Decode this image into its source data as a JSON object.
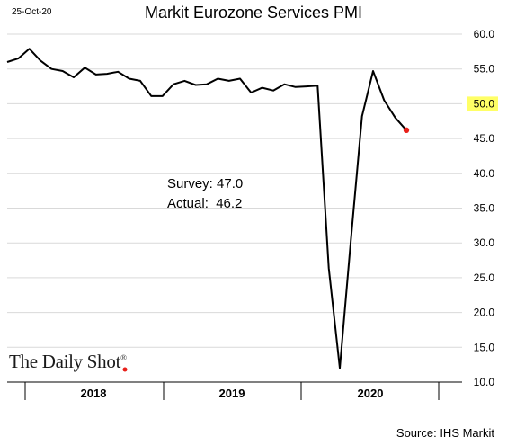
{
  "date": "25-Oct-20",
  "chart_data": {
    "type": "line",
    "title": "Markit Eurozone Services PMI",
    "x": [
      "2017-10",
      "2017-11",
      "2017-12",
      "2018-01",
      "2018-02",
      "2018-03",
      "2018-04",
      "2018-05",
      "2018-06",
      "2018-07",
      "2018-08",
      "2018-09",
      "2018-10",
      "2018-11",
      "2018-12",
      "2019-01",
      "2019-02",
      "2019-03",
      "2019-04",
      "2019-05",
      "2019-06",
      "2019-07",
      "2019-08",
      "2019-09",
      "2019-10",
      "2019-11",
      "2019-12",
      "2020-01",
      "2020-02",
      "2020-03",
      "2020-04",
      "2020-05",
      "2020-06",
      "2020-07",
      "2020-08",
      "2020-09",
      "2020-10"
    ],
    "values": [
      56.0,
      56.5,
      57.9,
      56.2,
      55.0,
      54.7,
      53.8,
      55.2,
      54.2,
      54.3,
      54.6,
      53.6,
      53.3,
      51.1,
      51.1,
      52.8,
      53.3,
      52.7,
      52.8,
      53.6,
      53.3,
      53.6,
      51.6,
      52.3,
      51.9,
      52.8,
      52.4,
      52.5,
      52.6,
      26.4,
      12.0,
      30.4,
      48.2,
      54.7,
      50.5,
      48.0,
      46.2
    ],
    "y_ticks": [
      "10.0",
      "15.0",
      "20.0",
      "25.0",
      "30.0",
      "35.0",
      "40.0",
      "45.0",
      "50.0",
      "55.0",
      "60.0"
    ],
    "ylim": [
      10,
      60
    ],
    "highlight_tick": "50.0",
    "x_groups": [
      "2018",
      "2019",
      "2020"
    ],
    "annotations": [
      "Survey: 47.0",
      "Actual:  46.2"
    ],
    "last_point_value": 46.2,
    "colors": {
      "line": "#000000",
      "last_point": "#e8201a",
      "highlight": "#ffff66",
      "grid": "#d9d9d9"
    }
  },
  "logo": {
    "text": "The Daily Shot",
    "mark": "®"
  },
  "source": "Source: IHS Markit"
}
